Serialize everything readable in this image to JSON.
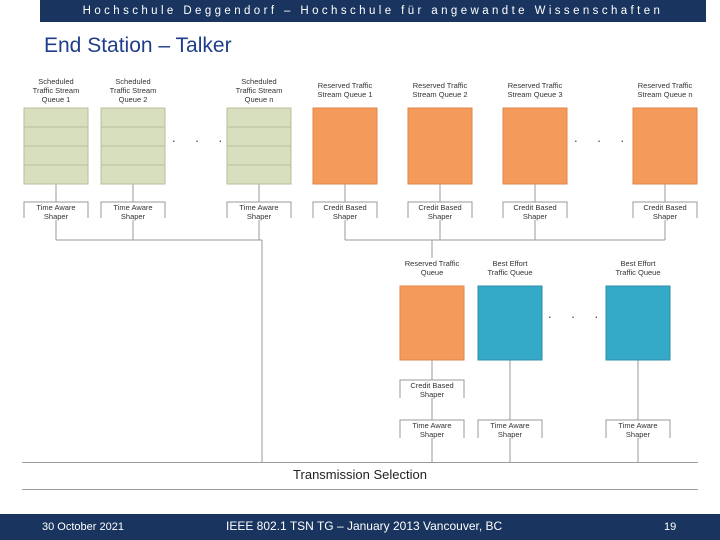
{
  "header": {
    "text": "Hochschule Deggendorf – Hochschule für angewandte Wissenschaften"
  },
  "title": "End Station – Talker",
  "colors": {
    "scheduled": "#d8dfbe",
    "reserved": "#f49a5a",
    "best_effort": "#35a9c8",
    "header_bg": "#19345e",
    "title": "#1f3e8a"
  },
  "queues": {
    "scheduled": [
      "Scheduled\nTraffic Stream\nQueue 1",
      "Scheduled\nTraffic Stream\nQueue 2",
      "Scheduled\nTraffic Stream\nQueue n"
    ],
    "reserved": [
      "Reserved Traffic\nStream Queue 1",
      "Reserved Traffic\nStream Queue 2",
      "Reserved Traffic\nStream Queue 3",
      "Reserved Traffic\nStream Queue n"
    ],
    "lower": [
      "Reserved Traffic\nQueue",
      "Best Effort\nTraffic Queue",
      "Best Effort\nTraffic Queue"
    ]
  },
  "shapers": {
    "top": [
      "Time Aware\nShaper",
      "Time Aware\nShaper",
      "Time Aware\nShaper",
      "Credit Based\nShaper",
      "Credit Based\nShaper",
      "Credit Based\nShaper",
      "Credit Based\nShaper"
    ],
    "mid_cbs": "Credit Based\nShaper",
    "bottom": [
      "Time Aware\nShaper",
      "Time Aware\nShaper",
      "Time Aware\nShaper"
    ]
  },
  "ellipsis": ". . .",
  "transmission_selection": "Transmission Selection",
  "footer": {
    "date": "30 October 2021",
    "center": "IEEE 802.1 TSN TG – January 2013 Vancouver, BC",
    "page": "19"
  }
}
